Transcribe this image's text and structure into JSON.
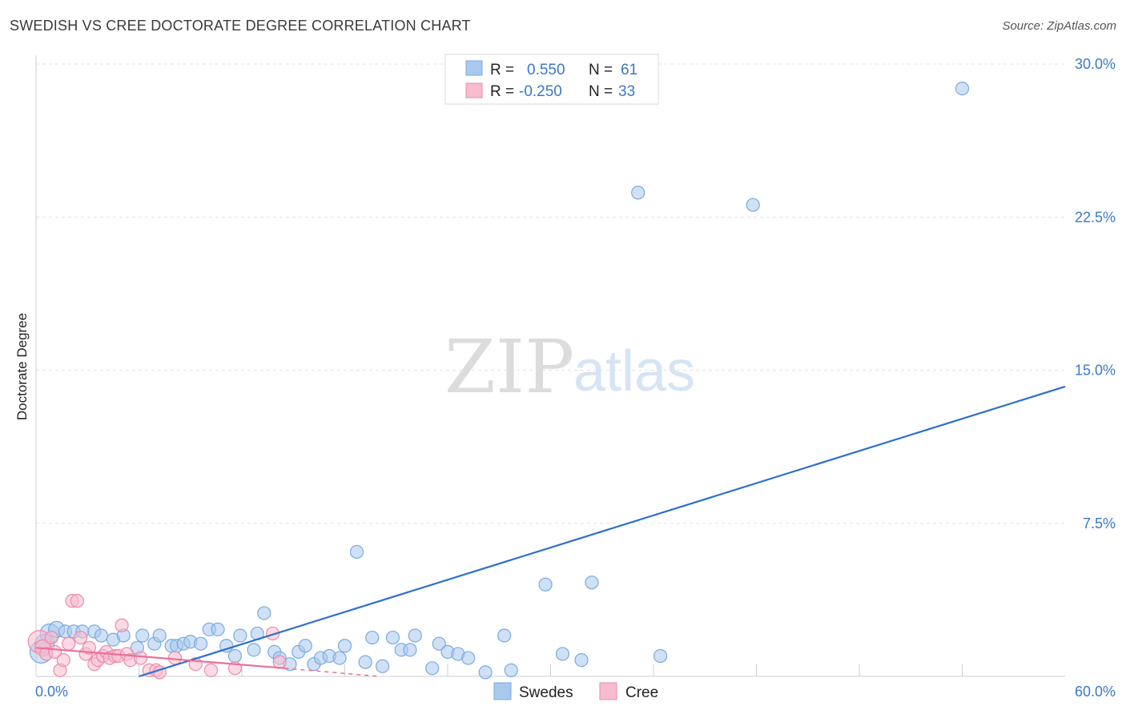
{
  "header": {
    "title": "SWEDISH VS CREE DOCTORATE DEGREE CORRELATION CHART",
    "source": "Source: ZipAtlas.com"
  },
  "watermark": {
    "zip": "ZIP",
    "atlas": "atlas"
  },
  "colors": {
    "swedes_fill": "#aac8ee",
    "swedes_stroke": "#7aaae0",
    "swedes_line": "#2d6fd0",
    "cree_fill": "#f7bccd",
    "cree_stroke": "#ee8aa8",
    "cree_line": "#e8709a",
    "tick_label": "#3a78c8",
    "grid": "#e3e3e3"
  },
  "legend_top": {
    "rows": [
      {
        "series": "Swedes",
        "r_label": "R =",
        "r_value": "0.550",
        "n_label": "N =",
        "n_value": "61"
      },
      {
        "series": "Cree",
        "r_label": "R =",
        "r_value": "-0.250",
        "n_label": "N =",
        "n_value": "33"
      }
    ]
  },
  "legend_bottom": [
    "Swedes",
    "Cree"
  ],
  "chart_data": {
    "type": "scatter",
    "title": "SWEDISH VS CREE DOCTORATE DEGREE CORRELATION CHART",
    "xlabel": "",
    "ylabel": "Doctorate Degree",
    "xlim": [
      0,
      60
    ],
    "ylim": [
      0,
      30
    ],
    "x_tick_labels": [
      "0.0%",
      "60.0%"
    ],
    "y_ticks": [
      7.5,
      15.0,
      22.5,
      30.0
    ],
    "y_tick_labels": [
      "7.5%",
      "15.0%",
      "22.5%",
      "30.0%"
    ],
    "grid": true,
    "series": [
      {
        "name": "Swedes",
        "r": 0.55,
        "n": 61,
        "trend": {
          "x": [
            6.0,
            60.0
          ],
          "y": [
            0.0,
            14.2
          ]
        },
        "points": [
          {
            "x": 0.3,
            "y": 1.2,
            "s": 14
          },
          {
            "x": 0.5,
            "y": 1.6,
            "s": 12
          },
          {
            "x": 0.8,
            "y": 2.1,
            "s": 12
          },
          {
            "x": 1.2,
            "y": 2.3,
            "s": 10
          },
          {
            "x": 1.7,
            "y": 2.2,
            "s": 8
          },
          {
            "x": 2.2,
            "y": 2.2,
            "s": 8
          },
          {
            "x": 2.7,
            "y": 2.2,
            "s": 8
          },
          {
            "x": 3.4,
            "y": 2.2,
            "s": 8
          },
          {
            "x": 3.8,
            "y": 2.0,
            "s": 8
          },
          {
            "x": 4.5,
            "y": 1.8,
            "s": 8
          },
          {
            "x": 5.1,
            "y": 2.0,
            "s": 8
          },
          {
            "x": 5.9,
            "y": 1.4,
            "s": 8
          },
          {
            "x": 6.2,
            "y": 2.0,
            "s": 8
          },
          {
            "x": 6.9,
            "y": 1.6,
            "s": 8
          },
          {
            "x": 7.2,
            "y": 2.0,
            "s": 8
          },
          {
            "x": 7.9,
            "y": 1.5,
            "s": 8
          },
          {
            "x": 8.2,
            "y": 1.5,
            "s": 8
          },
          {
            "x": 8.6,
            "y": 1.6,
            "s": 8
          },
          {
            "x": 9.0,
            "y": 1.7,
            "s": 8
          },
          {
            "x": 9.6,
            "y": 1.6,
            "s": 8
          },
          {
            "x": 10.1,
            "y": 2.3,
            "s": 8
          },
          {
            "x": 10.6,
            "y": 2.3,
            "s": 8
          },
          {
            "x": 11.1,
            "y": 1.5,
            "s": 8
          },
          {
            "x": 11.6,
            "y": 1.0,
            "s": 8
          },
          {
            "x": 11.9,
            "y": 2.0,
            "s": 8
          },
          {
            "x": 12.7,
            "y": 1.3,
            "s": 8
          },
          {
            "x": 12.9,
            "y": 2.1,
            "s": 8
          },
          {
            "x": 13.3,
            "y": 3.1,
            "s": 8
          },
          {
            "x": 13.9,
            "y": 1.2,
            "s": 8
          },
          {
            "x": 14.2,
            "y": 0.9,
            "s": 8
          },
          {
            "x": 14.8,
            "y": 0.6,
            "s": 8
          },
          {
            "x": 15.3,
            "y": 1.2,
            "s": 8
          },
          {
            "x": 15.7,
            "y": 1.5,
            "s": 8
          },
          {
            "x": 16.2,
            "y": 0.6,
            "s": 8
          },
          {
            "x": 16.6,
            "y": 0.9,
            "s": 8
          },
          {
            "x": 17.1,
            "y": 1.0,
            "s": 8
          },
          {
            "x": 17.7,
            "y": 0.9,
            "s": 8
          },
          {
            "x": 18.0,
            "y": 1.5,
            "s": 8
          },
          {
            "x": 18.7,
            "y": 6.1,
            "s": 8
          },
          {
            "x": 19.2,
            "y": 0.7,
            "s": 8
          },
          {
            "x": 19.6,
            "y": 1.9,
            "s": 8
          },
          {
            "x": 20.2,
            "y": 0.5,
            "s": 8
          },
          {
            "x": 20.8,
            "y": 1.9,
            "s": 8
          },
          {
            "x": 21.3,
            "y": 1.3,
            "s": 8
          },
          {
            "x": 21.8,
            "y": 1.3,
            "s": 8
          },
          {
            "x": 22.1,
            "y": 2.0,
            "s": 8
          },
          {
            "x": 23.1,
            "y": 0.4,
            "s": 8
          },
          {
            "x": 23.5,
            "y": 1.6,
            "s": 8
          },
          {
            "x": 24.0,
            "y": 1.2,
            "s": 8
          },
          {
            "x": 24.6,
            "y": 1.1,
            "s": 8
          },
          {
            "x": 25.2,
            "y": 0.9,
            "s": 8
          },
          {
            "x": 26.2,
            "y": 0.2,
            "s": 8
          },
          {
            "x": 27.3,
            "y": 2.0,
            "s": 8
          },
          {
            "x": 27.7,
            "y": 0.3,
            "s": 8
          },
          {
            "x": 29.7,
            "y": 4.5,
            "s": 8
          },
          {
            "x": 30.7,
            "y": 1.1,
            "s": 8
          },
          {
            "x": 31.8,
            "y": 0.8,
            "s": 8
          },
          {
            "x": 32.4,
            "y": 4.6,
            "s": 8
          },
          {
            "x": 35.1,
            "y": 23.7,
            "s": 8
          },
          {
            "x": 36.4,
            "y": 1.0,
            "s": 8
          },
          {
            "x": 41.8,
            "y": 23.1,
            "s": 8
          },
          {
            "x": 54.0,
            "y": 28.8,
            "s": 8
          }
        ]
      },
      {
        "name": "Cree",
        "r": -0.25,
        "n": 33,
        "trend": {
          "x": [
            0.0,
            14.5
          ],
          "y": [
            1.4,
            0.4
          ]
        },
        "trend_dashed": {
          "x": [
            14.5,
            20.0
          ],
          "y": [
            0.4,
            0.0
          ]
        },
        "points": [
          {
            "x": 0.2,
            "y": 1.7,
            "s": 14
          },
          {
            "x": 0.4,
            "y": 1.4,
            "s": 10
          },
          {
            "x": 0.6,
            "y": 1.1,
            "s": 8
          },
          {
            "x": 0.9,
            "y": 1.9,
            "s": 8
          },
          {
            "x": 1.1,
            "y": 1.2,
            "s": 8
          },
          {
            "x": 1.4,
            "y": 0.3,
            "s": 8
          },
          {
            "x": 1.6,
            "y": 0.8,
            "s": 8
          },
          {
            "x": 1.9,
            "y": 1.6,
            "s": 8
          },
          {
            "x": 2.1,
            "y": 3.7,
            "s": 8
          },
          {
            "x": 2.4,
            "y": 3.7,
            "s": 8
          },
          {
            "x": 2.6,
            "y": 1.9,
            "s": 8
          },
          {
            "x": 2.9,
            "y": 1.1,
            "s": 8
          },
          {
            "x": 3.1,
            "y": 1.4,
            "s": 8
          },
          {
            "x": 3.4,
            "y": 0.6,
            "s": 8
          },
          {
            "x": 3.6,
            "y": 0.8,
            "s": 8
          },
          {
            "x": 3.9,
            "y": 1.0,
            "s": 8
          },
          {
            "x": 4.1,
            "y": 1.2,
            "s": 8
          },
          {
            "x": 4.3,
            "y": 0.9,
            "s": 8
          },
          {
            "x": 4.6,
            "y": 1.0,
            "s": 8
          },
          {
            "x": 4.8,
            "y": 1.0,
            "s": 8
          },
          {
            "x": 5.0,
            "y": 2.5,
            "s": 8
          },
          {
            "x": 5.3,
            "y": 1.1,
            "s": 8
          },
          {
            "x": 5.5,
            "y": 0.8,
            "s": 8
          },
          {
            "x": 6.1,
            "y": 0.9,
            "s": 8
          },
          {
            "x": 6.6,
            "y": 0.3,
            "s": 8
          },
          {
            "x": 7.0,
            "y": 0.3,
            "s": 8
          },
          {
            "x": 7.2,
            "y": 0.2,
            "s": 8
          },
          {
            "x": 8.1,
            "y": 0.9,
            "s": 8
          },
          {
            "x": 9.3,
            "y": 0.6,
            "s": 8
          },
          {
            "x": 10.2,
            "y": 0.3,
            "s": 8
          },
          {
            "x": 11.6,
            "y": 0.4,
            "s": 8
          },
          {
            "x": 13.8,
            "y": 2.1,
            "s": 8
          },
          {
            "x": 14.2,
            "y": 0.7,
            "s": 8
          }
        ]
      }
    ]
  }
}
